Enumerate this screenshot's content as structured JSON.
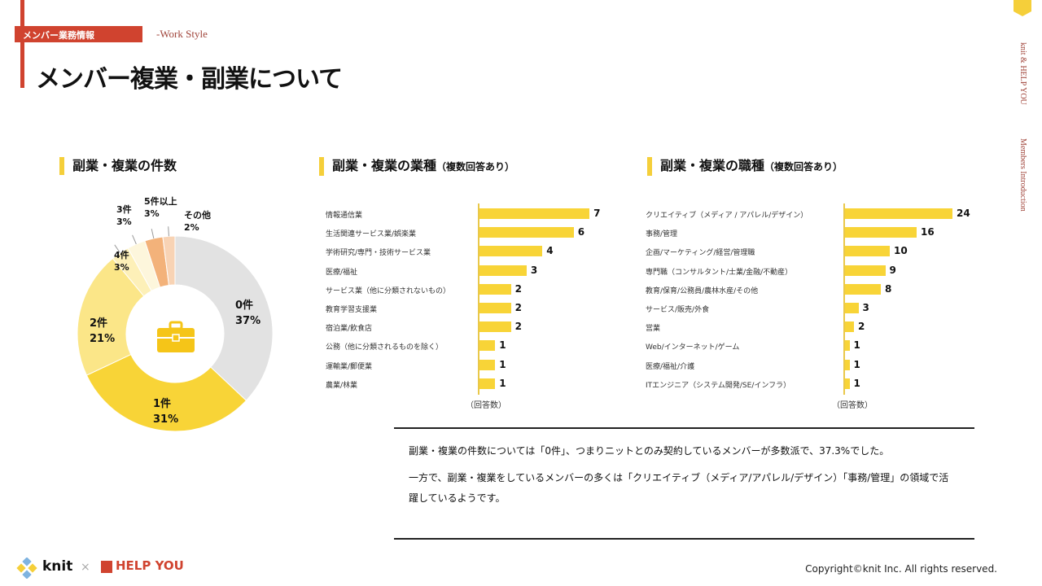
{
  "header": {
    "tag": "メンバー業務情報",
    "subtitle": "-Work Style",
    "title": "メンバー複業・副業について"
  },
  "side": {
    "text1": "knit & HELP YOU",
    "text2": "Members Introduction"
  },
  "colors": {
    "accent": "#d0432f",
    "yellow": "#f8d437"
  },
  "chart_data": [
    {
      "type": "pie",
      "title": "副業・複業の件数",
      "donut": true,
      "center_icon": "briefcase-icon",
      "categories": [
        "0件",
        "1件",
        "2件",
        "4件",
        "3件",
        "5件以上",
        "その他"
      ],
      "values": [
        37,
        31,
        21,
        3,
        3,
        3,
        2
      ],
      "labels": [
        "37%",
        "31%",
        "21%",
        "3%",
        "3%",
        "3%",
        "2%"
      ],
      "colors": [
        "#e2e2e2",
        "#f8d437",
        "#fbe688",
        "#fdf0b8",
        "#fdf6dc",
        "#f3b27a",
        "#f8d3b4"
      ]
    },
    {
      "type": "bar",
      "orientation": "horizontal",
      "title": "副業・複業の業種",
      "title_note": "（複数回答あり）",
      "xlabel": "（回答数）",
      "categories": [
        "情報通信業",
        "生活関連サービス業/娯楽業",
        "学術研究/専門・技術サービス業",
        "医療/福祉",
        "サービス業（他に分類されないもの）",
        "教育学習支援業",
        "宿泊業/飲食店",
        "公務（他に分類されるものを除く）",
        "運輸業/郵便業",
        "農業/林業"
      ],
      "values": [
        7,
        6,
        4,
        3,
        2,
        2,
        2,
        1,
        1,
        1
      ]
    },
    {
      "type": "bar",
      "orientation": "horizontal",
      "title": "副業・複業の職種",
      "title_note": "（複数回答あり）",
      "xlabel": "（回答数）",
      "categories": [
        "クリエイティブ（メディア / アパレル/デザイン）",
        "事務/管理",
        "企画/マーケティング/経営/管理職",
        "専門職（コンサルタント/士業/金融/不動産）",
        "教育/保育/公務員/農林水産/その他",
        "サービス/販売/外食",
        "営業",
        "Web/インターネット/ゲーム",
        "医療/福祉/介護",
        "ITエンジニア（システム開発/SE/インフラ）"
      ],
      "values": [
        24,
        16,
        10,
        9,
        8,
        3,
        2,
        1,
        1,
        1
      ]
    }
  ],
  "summary": {
    "line1": "副業・複業の件数については「0件」、つまりニットとのみ契約しているメンバーが多数派で、37.3%でした。",
    "line2": "一方で、副業・複業をしているメンバーの多くは「クリエイティブ（メディア/アパレル/デザイン）「事務/管理」の領域で活",
    "line3": "躍しているようです。"
  },
  "footer": {
    "logo1": "knit",
    "times": "×",
    "logo2": "HELP YOU",
    "copyright": "Copyright©knit Inc. All rights reserved."
  }
}
